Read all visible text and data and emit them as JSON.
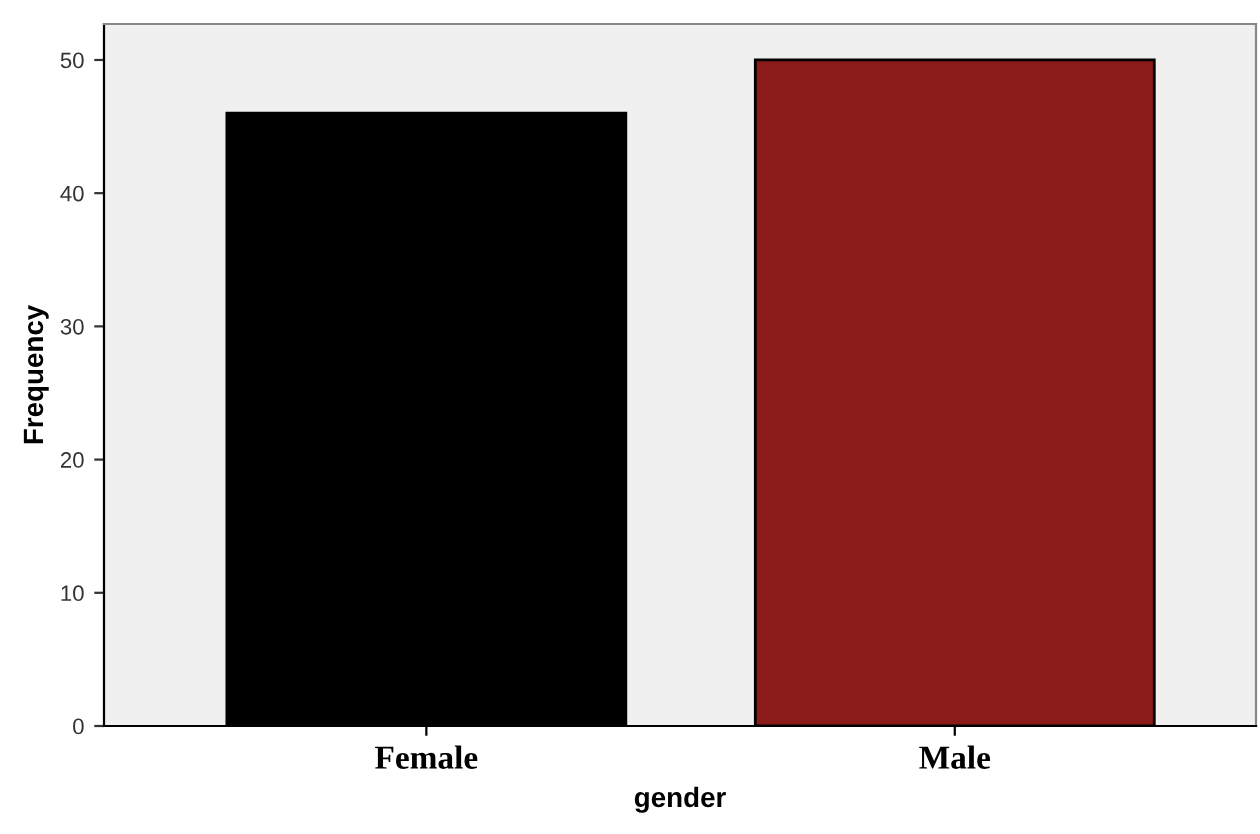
{
  "chart_data": {
    "type": "bar",
    "xlabel": "gender",
    "ylabel": "Frequency",
    "categories": [
      "Female",
      "Male"
    ],
    "values": [
      46,
      50
    ],
    "colors": [
      "#000000",
      "#8b1a1a"
    ],
    "ylim": [
      0,
      52.7
    ],
    "yticks": [
      0,
      10,
      20,
      30,
      40,
      50
    ],
    "grid": false
  }
}
